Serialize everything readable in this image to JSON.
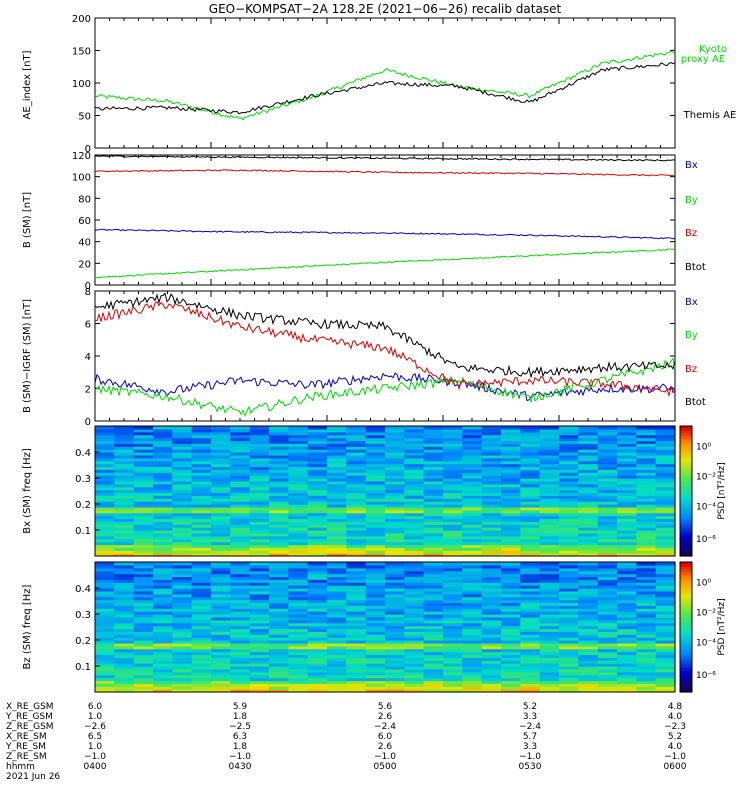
{
  "title": "GEO−KOMPSAT−2A 128.2E (2021−06−26) recalib dataset",
  "colors": {
    "black": "#000000",
    "red": "#e00000",
    "green": "#00dd00",
    "blue": "#0000cc"
  },
  "chart_data": [
    {
      "type": "line",
      "ylabel": "AE_index [nT]",
      "ylim": [
        0,
        200
      ],
      "yticks": [
        "0",
        "50",
        "100",
        "150",
        "200"
      ],
      "x": [
        "0400",
        "0415",
        "0430",
        "0445",
        "0500",
        "0515",
        "0530",
        "0545",
        "0600"
      ],
      "series": [
        {
          "name": "Kyoto proxy AE",
          "color": "#00dd00",
          "values": [
            80,
            72,
            45,
            78,
            120,
            95,
            80,
            130,
            148
          ]
        },
        {
          "name": "Themis AE",
          "color": "#000000",
          "values": [
            60,
            62,
            55,
            80,
            100,
            95,
            70,
            120,
            130
          ]
        }
      ],
      "legend": [
        "Kyoto",
        "proxy AE",
        "Themis AE"
      ]
    },
    {
      "type": "line",
      "ylabel": "B (SM) [nT]",
      "ylim": [
        0,
        120
      ],
      "yticks": [
        "0",
        "20",
        "40",
        "60",
        "80",
        "100",
        "120"
      ],
      "x": [
        "0400",
        "0430",
        "0500",
        "0530",
        "0600"
      ],
      "series": [
        {
          "name": "Bx",
          "color": "#0000cc",
          "values": [
            51,
            49,
            48,
            46,
            43
          ]
        },
        {
          "name": "By",
          "color": "#00dd00",
          "values": [
            7,
            14,
            21,
            27,
            33
          ]
        },
        {
          "name": "Bz",
          "color": "#e00000",
          "values": [
            105,
            106,
            104,
            103,
            101
          ]
        },
        {
          "name": "Btot",
          "color": "#000000",
          "values": [
            119,
            118,
            117,
            116,
            115
          ]
        }
      ]
    },
    {
      "type": "line",
      "ylabel": "B (SM)−IGRF (SM) [nT]",
      "ylim": [
        0,
        8
      ],
      "yticks": [
        "0",
        "2",
        "4",
        "6",
        "8"
      ],
      "x": [
        "0400",
        "0415",
        "0430",
        "0445",
        "0500",
        "0515",
        "0530",
        "0545",
        "0600"
      ],
      "series": [
        {
          "name": "Bx",
          "color": "#0000cc",
          "values": [
            2.6,
            1.8,
            2.5,
            2.2,
            2.8,
            2.4,
            1.5,
            2.0,
            2.0
          ]
        },
        {
          "name": "By",
          "color": "#00dd00",
          "values": [
            2.0,
            1.5,
            0.5,
            1.5,
            2.0,
            2.5,
            1.4,
            2.5,
            3.6
          ]
        },
        {
          "name": "Bz",
          "color": "#e00000",
          "values": [
            6.3,
            7.2,
            5.8,
            5.0,
            4.5,
            2.2,
            2.5,
            2.3,
            1.8
          ]
        },
        {
          "name": "Btot",
          "color": "#000000",
          "values": [
            7.0,
            7.6,
            6.5,
            6.0,
            5.8,
            3.3,
            3.0,
            3.3,
            3.4
          ]
        }
      ]
    },
    {
      "type": "heatmap",
      "ylabel": "Bx (SM) freq [Hz]",
      "yticks": [
        "0.1",
        "0.2",
        "0.3",
        "0.4"
      ],
      "colorbar_label": "PSD [nT²/Hz]",
      "colorbar_ticks": [
        "10⁰",
        "10⁻²",
        "10⁻⁴",
        "10⁻⁶"
      ]
    },
    {
      "type": "heatmap",
      "ylabel": "Bz (SM) freq [Hz]",
      "yticks": [
        "0.1",
        "0.2",
        "0.3",
        "0.4"
      ],
      "colorbar_label": "PSD [nT²/Hz]",
      "colorbar_ticks": [
        "10⁰",
        "10⁻²",
        "10⁻⁴",
        "10⁻⁶"
      ]
    }
  ],
  "ephemeris": {
    "labels": [
      "X_RE_GSM",
      "Y_RE_GSM",
      "Z_RE_GSM",
      "X_RE_SM",
      "Y_RE_SM",
      "Z_RE_SM",
      "hhmm"
    ],
    "columns": [
      [
        "6.0",
        "1.0",
        "−2.6",
        "6.5",
        "1.0",
        "−1.0",
        "0400"
      ],
      [
        "5.9",
        "1.8",
        "−2.5",
        "6.3",
        "1.8",
        "−1.0",
        "0430"
      ],
      [
        "5.6",
        "2.6",
        "−2.4",
        "6.0",
        "2.6",
        "−1.0",
        "0500"
      ],
      [
        "5.2",
        "3.3",
        "−2.4",
        "5.7",
        "3.3",
        "−1.0",
        "0530"
      ],
      [
        "4.8",
        "4.0",
        "−2.3",
        "5.2",
        "4.0",
        "−1.0",
        "0600"
      ]
    ],
    "date": "2021 Jun 26"
  }
}
